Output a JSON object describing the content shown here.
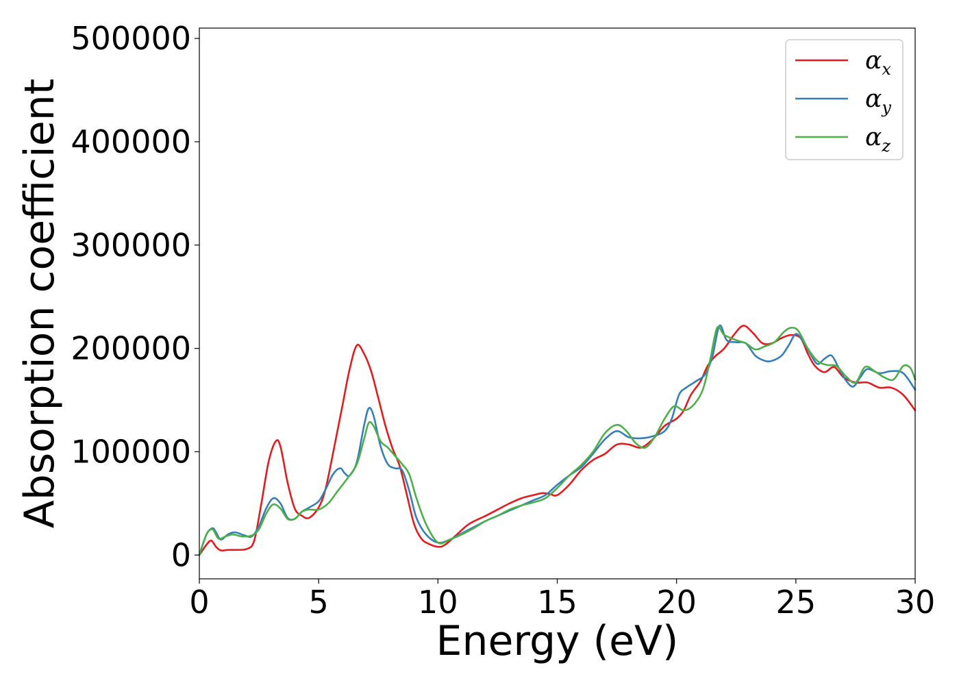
{
  "chart_data": {
    "type": "line",
    "title": "",
    "xlabel": "Energy (eV)",
    "ylabel": "Absorption coefficient",
    "xlim": [
      0,
      30
    ],
    "ylim": [
      -23000,
      510000
    ],
    "xticks": [
      0,
      5,
      10,
      15,
      20,
      25,
      30
    ],
    "xtick_labels": [
      "0",
      "5",
      "10",
      "15",
      "20",
      "25",
      "30"
    ],
    "yticks": [
      0,
      100000,
      200000,
      300000,
      400000,
      500000
    ],
    "ytick_labels": [
      "0",
      "100000",
      "200000",
      "300000",
      "400000",
      "500000"
    ],
    "grid": false,
    "legend_position": "top-right",
    "series": [
      {
        "name": "α_x",
        "legend_main": "α",
        "legend_sub": "x",
        "color": "#e41a1c",
        "points": [
          [
            0,
            0
          ],
          [
            0.3,
            10000
          ],
          [
            0.5,
            14000
          ],
          [
            0.7,
            8000
          ],
          [
            0.9,
            4500
          ],
          [
            1.2,
            5000
          ],
          [
            1.5,
            5000
          ],
          [
            2,
            6000
          ],
          [
            2.3,
            14000
          ],
          [
            2.6,
            50000
          ],
          [
            2.9,
            90000
          ],
          [
            3.2,
            110000
          ],
          [
            3.4,
            105000
          ],
          [
            3.7,
            70000
          ],
          [
            4,
            45000
          ],
          [
            4.3,
            38000
          ],
          [
            4.6,
            36000
          ],
          [
            5,
            46000
          ],
          [
            5.3,
            65000
          ],
          [
            5.7,
            110000
          ],
          [
            6,
            145000
          ],
          [
            6.3,
            180000
          ],
          [
            6.6,
            203000
          ],
          [
            6.9,
            195000
          ],
          [
            7.2,
            178000
          ],
          [
            7.5,
            152000
          ],
          [
            7.8,
            125000
          ],
          [
            8.1,
            103000
          ],
          [
            8.4,
            86000
          ],
          [
            8.7,
            58000
          ],
          [
            9,
            30000
          ],
          [
            9.3,
            16000
          ],
          [
            9.6,
            11000
          ],
          [
            10,
            8000
          ],
          [
            10.3,
            10000
          ],
          [
            10.8,
            20000
          ],
          [
            11.3,
            30000
          ],
          [
            12,
            38000
          ],
          [
            12.5,
            44000
          ],
          [
            13,
            50000
          ],
          [
            13.5,
            55000
          ],
          [
            14,
            58000
          ],
          [
            14.4,
            60000
          ],
          [
            14.7,
            59000
          ],
          [
            15,
            58000
          ],
          [
            15.5,
            68000
          ],
          [
            16,
            82000
          ],
          [
            16.5,
            92000
          ],
          [
            17,
            98000
          ],
          [
            17.5,
            107000
          ],
          [
            18,
            107000
          ],
          [
            18.5,
            104000
          ],
          [
            19,
            112000
          ],
          [
            19.5,
            125000
          ],
          [
            20,
            132000
          ],
          [
            20.3,
            140000
          ],
          [
            20.6,
            155000
          ],
          [
            21,
            168000
          ],
          [
            21.3,
            183000
          ],
          [
            21.6,
            192000
          ],
          [
            22,
            200000
          ],
          [
            22.4,
            213000
          ],
          [
            22.8,
            222000
          ],
          [
            23.2,
            215000
          ],
          [
            23.6,
            205000
          ],
          [
            24,
            205000
          ],
          [
            24.4,
            210000
          ],
          [
            24.8,
            213000
          ],
          [
            25.2,
            210000
          ],
          [
            25.5,
            195000
          ],
          [
            25.8,
            183000
          ],
          [
            26.2,
            177000
          ],
          [
            26.6,
            182000
          ],
          [
            27,
            172000
          ],
          [
            27.5,
            167000
          ],
          [
            28,
            167000
          ],
          [
            28.5,
            162000
          ],
          [
            29,
            162000
          ],
          [
            29.5,
            155000
          ],
          [
            30,
            140000
          ]
        ]
      },
      {
        "name": "α_y",
        "legend_main": "α",
        "legend_sub": "y",
        "color": "#377eb8",
        "points": [
          [
            0,
            0
          ],
          [
            0.3,
            20000
          ],
          [
            0.55,
            26000
          ],
          [
            0.7,
            22000
          ],
          [
            0.9,
            15000
          ],
          [
            1.2,
            20000
          ],
          [
            1.5,
            22000
          ],
          [
            1.9,
            19000
          ],
          [
            2.2,
            18000
          ],
          [
            2.5,
            28000
          ],
          [
            2.8,
            45000
          ],
          [
            3.1,
            55000
          ],
          [
            3.4,
            50000
          ],
          [
            3.7,
            36000
          ],
          [
            4,
            35000
          ],
          [
            4.3,
            42000
          ],
          [
            4.6,
            46000
          ],
          [
            5,
            52000
          ],
          [
            5.3,
            64000
          ],
          [
            5.6,
            78000
          ],
          [
            5.9,
            84000
          ],
          [
            6.1,
            79000
          ],
          [
            6.3,
            77000
          ],
          [
            6.6,
            90000
          ],
          [
            6.9,
            125000
          ],
          [
            7.1,
            142000
          ],
          [
            7.3,
            135000
          ],
          [
            7.6,
            105000
          ],
          [
            7.9,
            88000
          ],
          [
            8.2,
            84000
          ],
          [
            8.5,
            82000
          ],
          [
            8.8,
            62000
          ],
          [
            9.1,
            36000
          ],
          [
            9.5,
            20000
          ],
          [
            10,
            12000
          ],
          [
            10.5,
            15000
          ],
          [
            11,
            21000
          ],
          [
            11.5,
            27000
          ],
          [
            12,
            33000
          ],
          [
            12.5,
            38000
          ],
          [
            13,
            43000
          ],
          [
            13.5,
            48000
          ],
          [
            14,
            53000
          ],
          [
            14.5,
            58000
          ],
          [
            15,
            68000
          ],
          [
            15.5,
            77000
          ],
          [
            16,
            85000
          ],
          [
            16.5,
            98000
          ],
          [
            17,
            112000
          ],
          [
            17.5,
            120000
          ],
          [
            18,
            114000
          ],
          [
            18.5,
            113000
          ],
          [
            19,
            115000
          ],
          [
            19.5,
            120000
          ],
          [
            19.8,
            132000
          ],
          [
            20.1,
            155000
          ],
          [
            20.4,
            162000
          ],
          [
            20.8,
            168000
          ],
          [
            21.2,
            175000
          ],
          [
            21.5,
            192000
          ],
          [
            21.8,
            222000
          ],
          [
            22.1,
            208000
          ],
          [
            22.5,
            206000
          ],
          [
            22.9,
            205000
          ],
          [
            23.3,
            193000
          ],
          [
            23.7,
            188000
          ],
          [
            24,
            188000
          ],
          [
            24.4,
            193000
          ],
          [
            24.7,
            203000
          ],
          [
            25,
            214000
          ],
          [
            25.3,
            207000
          ],
          [
            25.6,
            195000
          ],
          [
            25.9,
            185000
          ],
          [
            26.2,
            190000
          ],
          [
            26.5,
            193000
          ],
          [
            26.8,
            181000
          ],
          [
            27.1,
            169000
          ],
          [
            27.4,
            163000
          ],
          [
            27.7,
            172000
          ],
          [
            28,
            180000
          ],
          [
            28.5,
            176000
          ],
          [
            29,
            178000
          ],
          [
            29.5,
            176000
          ],
          [
            30,
            160000
          ]
        ]
      },
      {
        "name": "α_z",
        "legend_main": "α",
        "legend_sub": "z",
        "color": "#4daf4a",
        "points": [
          [
            0,
            0
          ],
          [
            0.3,
            20000
          ],
          [
            0.55,
            25000
          ],
          [
            0.8,
            16000
          ],
          [
            1.1,
            18000
          ],
          [
            1.4,
            20000
          ],
          [
            1.8,
            18000
          ],
          [
            2.2,
            19000
          ],
          [
            2.5,
            25000
          ],
          [
            2.8,
            40000
          ],
          [
            3.1,
            49000
          ],
          [
            3.4,
            45000
          ],
          [
            3.7,
            35000
          ],
          [
            4,
            35000
          ],
          [
            4.3,
            42000
          ],
          [
            4.6,
            44000
          ],
          [
            5,
            44000
          ],
          [
            5.4,
            50000
          ],
          [
            5.8,
            62000
          ],
          [
            6.2,
            74000
          ],
          [
            6.6,
            88000
          ],
          [
            6.9,
            112000
          ],
          [
            7.1,
            128000
          ],
          [
            7.3,
            125000
          ],
          [
            7.6,
            110000
          ],
          [
            7.9,
            104000
          ],
          [
            8.2,
            96000
          ],
          [
            8.5,
            88000
          ],
          [
            8.8,
            78000
          ],
          [
            9.1,
            55000
          ],
          [
            9.5,
            30000
          ],
          [
            10,
            12000
          ],
          [
            10.5,
            15000
          ],
          [
            11,
            20000
          ],
          [
            11.5,
            26000
          ],
          [
            12,
            33000
          ],
          [
            12.5,
            38000
          ],
          [
            13,
            44000
          ],
          [
            13.5,
            48000
          ],
          [
            14,
            51000
          ],
          [
            14.5,
            55000
          ],
          [
            15,
            65000
          ],
          [
            15.5,
            77000
          ],
          [
            16,
            87000
          ],
          [
            16.5,
            100000
          ],
          [
            17,
            118000
          ],
          [
            17.5,
            126000
          ],
          [
            17.9,
            120000
          ],
          [
            18.3,
            108000
          ],
          [
            18.7,
            104000
          ],
          [
            19.1,
            115000
          ],
          [
            19.5,
            132000
          ],
          [
            19.9,
            144000
          ],
          [
            20.3,
            140000
          ],
          [
            20.7,
            145000
          ],
          [
            21.1,
            160000
          ],
          [
            21.4,
            188000
          ],
          [
            21.7,
            220000
          ],
          [
            22,
            213000
          ],
          [
            22.5,
            208000
          ],
          [
            22.9,
            205000
          ],
          [
            23.3,
            199000
          ],
          [
            23.7,
            202000
          ],
          [
            24.1,
            206000
          ],
          [
            24.5,
            216000
          ],
          [
            24.8,
            220000
          ],
          [
            25.1,
            217000
          ],
          [
            25.5,
            200000
          ],
          [
            25.9,
            188000
          ],
          [
            26.3,
            184000
          ],
          [
            26.7,
            183000
          ],
          [
            27.1,
            173000
          ],
          [
            27.5,
            167000
          ],
          [
            27.9,
            182000
          ],
          [
            28.3,
            178000
          ],
          [
            28.7,
            172000
          ],
          [
            29.1,
            170000
          ],
          [
            29.5,
            183000
          ],
          [
            29.8,
            181000
          ],
          [
            30,
            170000
          ]
        ]
      }
    ]
  }
}
